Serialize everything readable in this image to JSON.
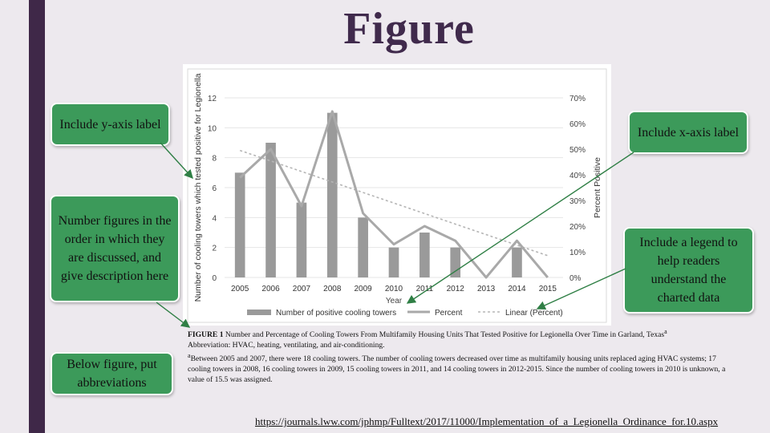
{
  "slide": {
    "title": "Figure",
    "callouts": {
      "y_axis": "Include y-axis label",
      "number_figures": "Number figures in the order in which they are discussed, and give description here",
      "abbreviations": "Below figure, put abbreviations",
      "x_axis": "Include x-axis label",
      "legend": "Include a legend to help readers understand the charted data"
    },
    "caption": {
      "figure_label": "FIGURE 1",
      "title": "Number and Percentage of Cooling Towers From Multifamily Housing Units That Tested Positive for Legionella Over Time in Garland, Texas",
      "title_mark": "a",
      "abbreviation": "Abbreviation: HVAC, heating, ventilating, and air-conditioning.",
      "footnote_mark": "a",
      "footnote": "Between 2005 and 2007, there were 18 cooling towers. The number of cooling towers decreased over time as multifamily housing units replaced aging HVAC systems; 17 cooling towers in 2008, 16 cooling towers in 2009, 15 cooling towers in 2011, and 14 cooling towers in 2012-2015. Since the number of cooling towers in 2010 is unknown, a value of 15.5 was assigned."
    },
    "source_link": "https://journals.lww.com/jphmp/Fulltext/2017/11000/Implementation_of_a_Legionella_Ordinance_for.10.aspx"
  },
  "colors": {
    "bar": "#9a9a9a",
    "percent_line": "#a9a9a9",
    "trend_line": "#b5b5b5",
    "callout": "#3c9a5a",
    "arrow": "#2f7f45",
    "accent_bar": "#3f2848",
    "title": "#402a4c"
  },
  "chart_data": {
    "type": "bar",
    "categories": [
      "2005",
      "2006",
      "2007",
      "2008",
      "2009",
      "2010",
      "2011",
      "2012",
      "2013",
      "2014",
      "2015"
    ],
    "xlabel": "Year",
    "ylabel": "Number of cooling towers which tested positive for Legionella",
    "y2label": "Percent Positive",
    "ylim": [
      0,
      12
    ],
    "yticks": [
      "0",
      "2",
      "4",
      "6",
      "8",
      "10",
      "12"
    ],
    "y2lim": [
      0,
      70
    ],
    "y2ticks": [
      "0%",
      "10%",
      "20%",
      "30%",
      "40%",
      "50%",
      "60%",
      "70%"
    ],
    "series": [
      {
        "name": "Number of positive cooling towers",
        "kind": "bar",
        "values": [
          7,
          9,
          5,
          11,
          4,
          2,
          3,
          2,
          0,
          2,
          0
        ]
      },
      {
        "name": "Percent",
        "kind": "line",
        "axis": "right",
        "values": [
          38.9,
          50.0,
          27.8,
          64.7,
          25.0,
          12.9,
          20.0,
          14.3,
          0,
          14.3,
          0
        ]
      },
      {
        "name": "Linear (Percent)",
        "kind": "trendline",
        "axis": "right",
        "values": [
          49.5,
          45.4,
          41.3,
          37.2,
          33.1,
          29.0,
          24.9,
          20.8,
          16.7,
          12.6,
          8.5
        ]
      }
    ],
    "legend_position": "bottom",
    "grid": true
  }
}
